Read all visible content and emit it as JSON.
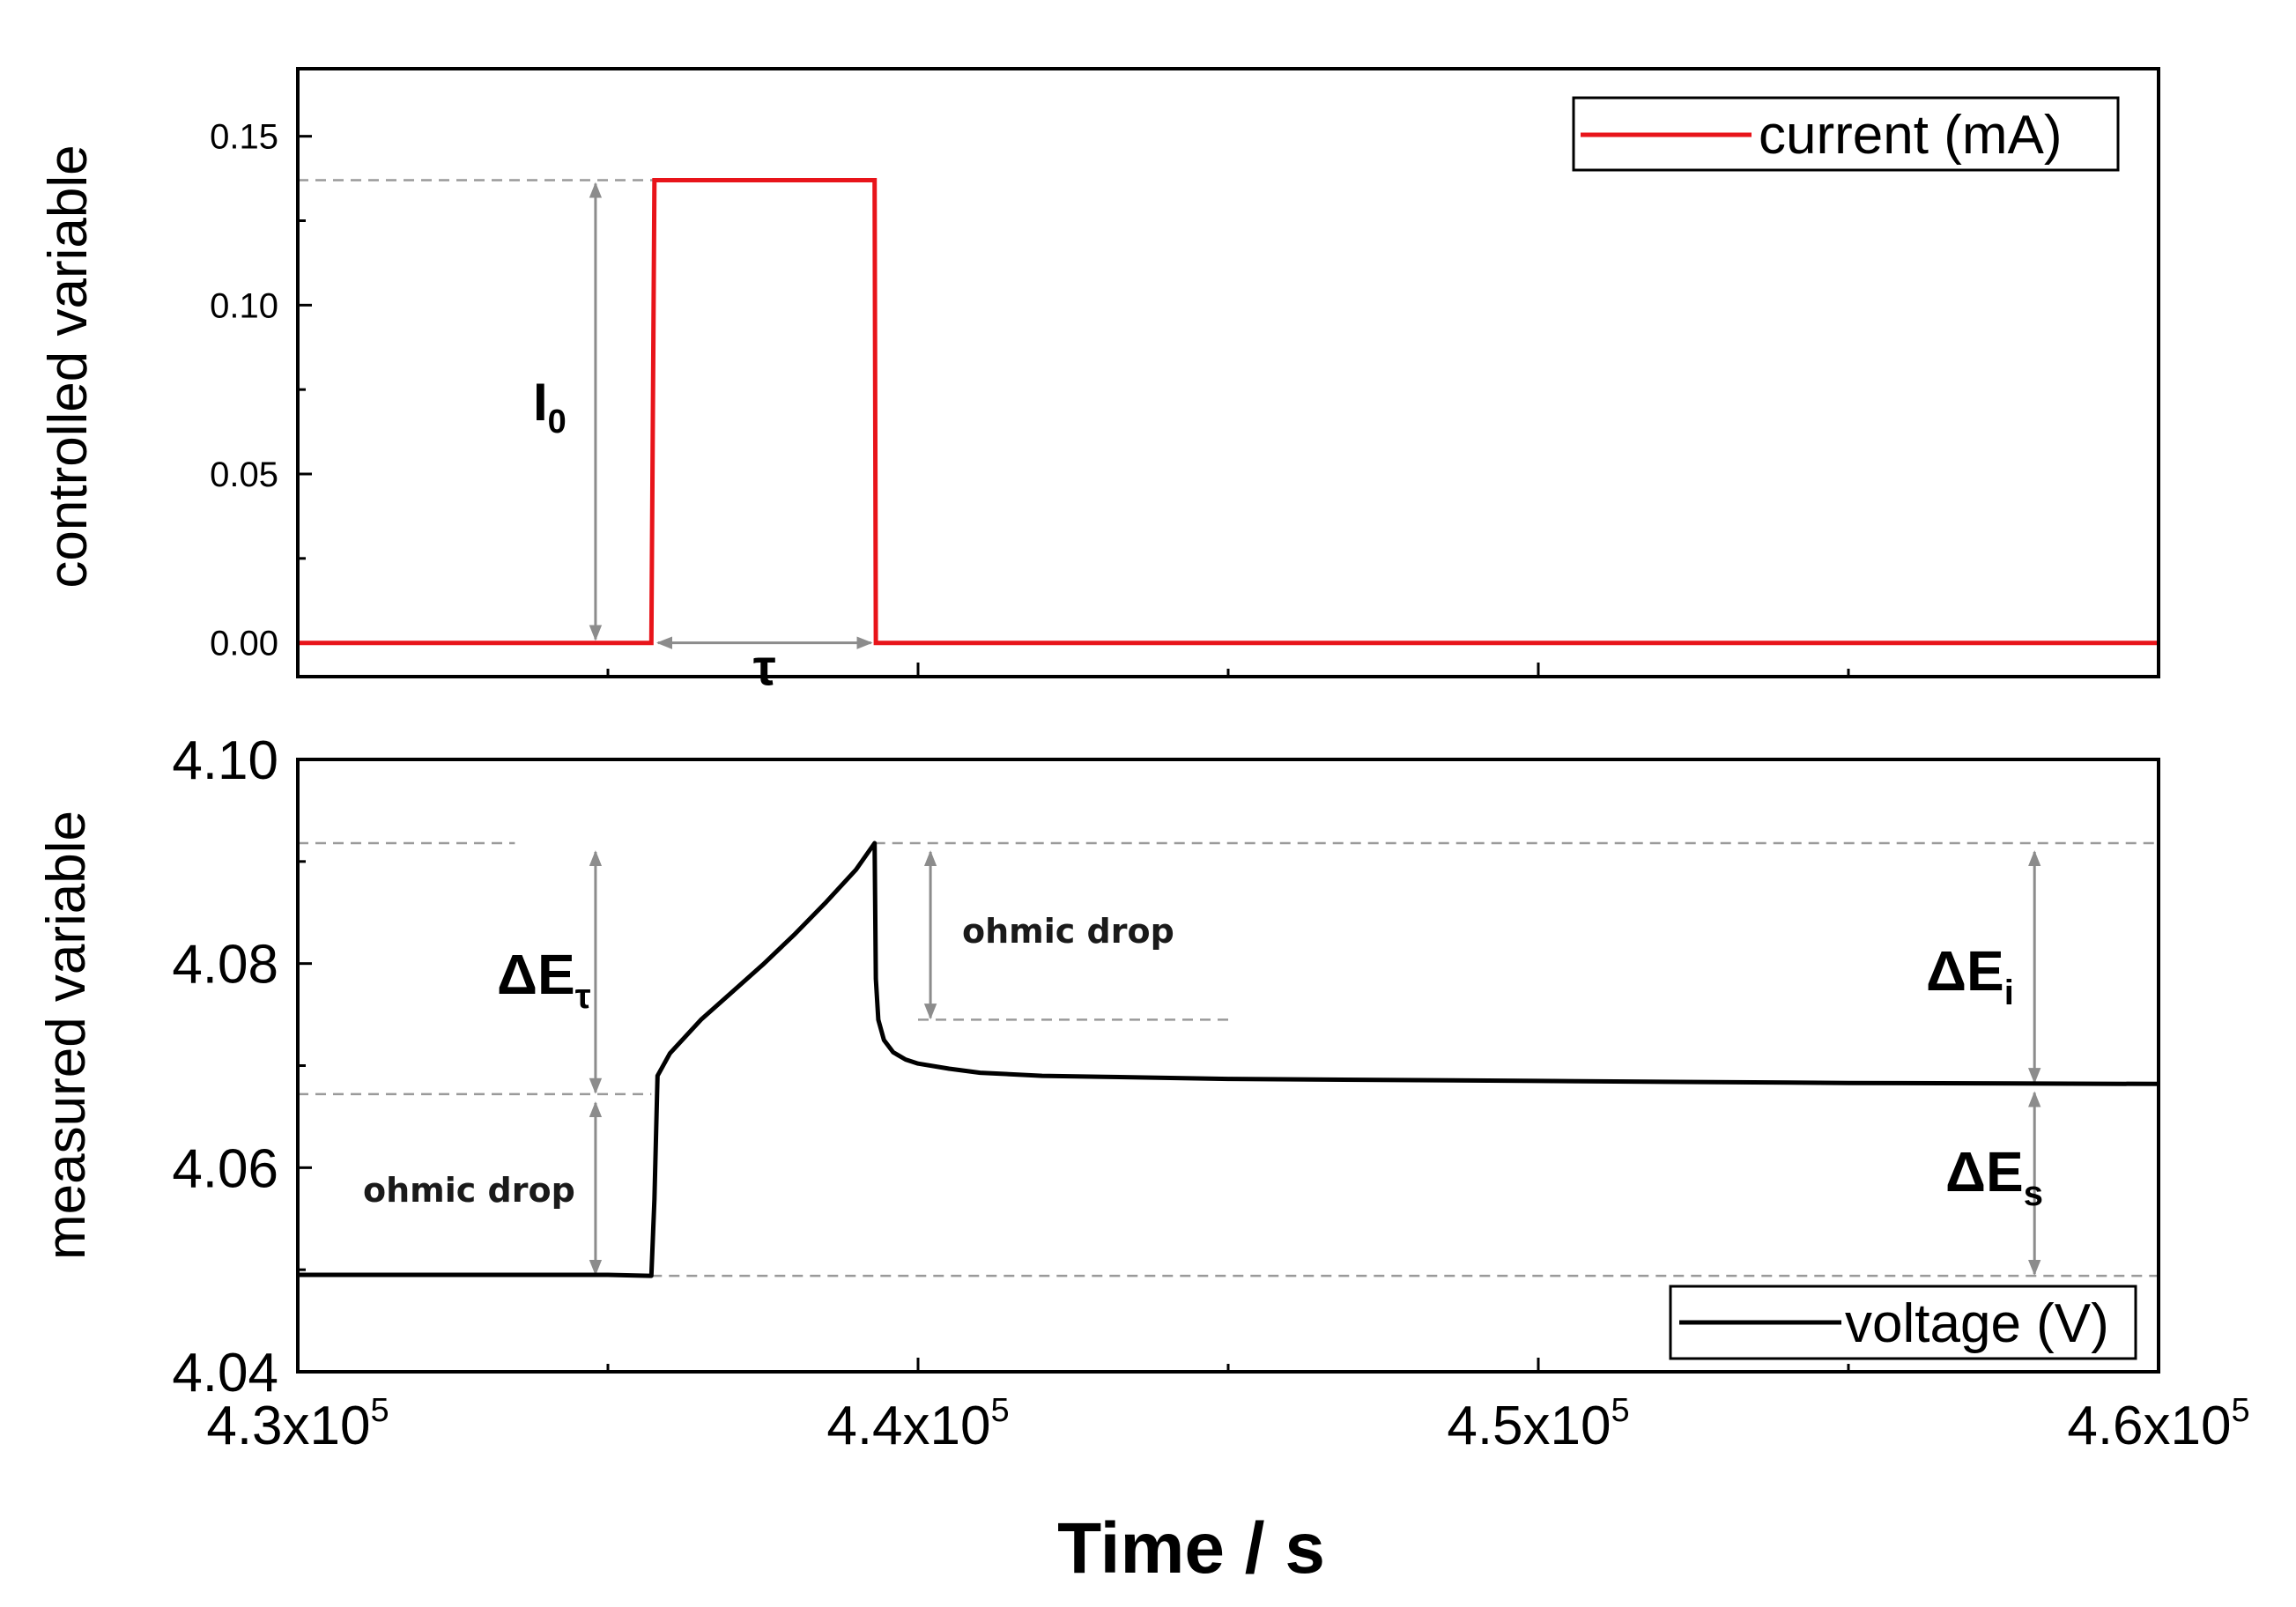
{
  "chart_data": [
    {
      "type": "line",
      "panel": "top",
      "ylabel": "controlled variable",
      "xlim": [
        430000,
        460000
      ],
      "ylim": [
        -0.01,
        0.17
      ],
      "yticks": [
        "0.00",
        "0.05",
        "0.10",
        "0.15"
      ],
      "legend": {
        "label": "current (mA)",
        "color": "#e8141a",
        "position": "top-right"
      },
      "series": [
        {
          "name": "current (mA)",
          "color": "#e8141a",
          "x": [
            430000,
            435700,
            435750,
            439300,
            439320,
            460000
          ],
          "y": [
            0,
            0,
            0.137,
            0.137,
            0,
            0
          ]
        }
      ],
      "annotations": {
        "i0": {
          "base": "I",
          "sub": "0",
          "x": 434800,
          "y_from": 0,
          "y_to": 0.137
        },
        "tau": {
          "label": "τ",
          "x_from": 435750,
          "x_to": 439300,
          "y": 0
        }
      }
    },
    {
      "type": "line",
      "panel": "bottom",
      "ylabel": "measured variable",
      "xlabel": "Time / s",
      "xlim": [
        430000,
        460000
      ],
      "ylim": [
        4.04,
        4.1
      ],
      "yticks": [
        "4.04",
        "4.06",
        "4.08",
        "4.10"
      ],
      "xtick_values": [
        430000,
        440000,
        450000,
        460000
      ],
      "xticks": [
        {
          "mantissa": "4.3x10",
          "exp": "5"
        },
        {
          "mantissa": "4.4x10",
          "exp": "5"
        },
        {
          "mantissa": "4.5x10",
          "exp": "5"
        },
        {
          "mantissa": "4.6x10",
          "exp": "5"
        }
      ],
      "legend": {
        "label": "voltage (V)",
        "color": "#000000",
        "position": "bottom-right"
      },
      "series": [
        {
          "name": "voltage (V)",
          "color": "#000000",
          "x": [
            430000,
            435000,
            435680,
            435700,
            435750,
            435800,
            436000,
            436500,
            437000,
            437500,
            438000,
            438500,
            439000,
            439300,
            439320,
            439360,
            439450,
            439600,
            439800,
            440000,
            440500,
            441000,
            442000,
            443000,
            445000,
            450000,
            455000,
            460000
          ],
          "y": [
            4.0495,
            4.0495,
            4.0494,
            4.0494,
            4.0569,
            4.069,
            4.0712,
            4.0745,
            4.0772,
            4.0799,
            4.0828,
            4.0859,
            4.0892,
            4.0918,
            4.0785,
            4.0745,
            4.0725,
            4.0713,
            4.0706,
            4.0702,
            4.0697,
            4.0693,
            4.069,
            4.0689,
            4.0687,
            4.0685,
            4.0683,
            4.0682
          ]
        }
      ],
      "annotations": {
        "ohmic_drop_1": {
          "label": "ohmic drop",
          "x": 434800,
          "y_from": 4.0494,
          "y_to": 4.0672
        },
        "ohmic_drop_2": {
          "label": "ohmic drop",
          "x": 440200,
          "y_from": 4.0918,
          "y_to": 4.0745
        },
        "delta_e_tau": {
          "base": "ΔE",
          "sub": "τ",
          "x": 434800,
          "y_from": 4.0672,
          "y_to": 4.0918
        },
        "delta_e_i": {
          "base": "ΔE",
          "sub": "i",
          "x": 458000,
          "y_from": 4.0918,
          "y_to": 4.0682
        },
        "delta_e_s": {
          "base": "ΔE",
          "sub": "s",
          "x": 458000,
          "y_from": 4.0682,
          "y_to": 4.0494
        }
      }
    }
  ]
}
